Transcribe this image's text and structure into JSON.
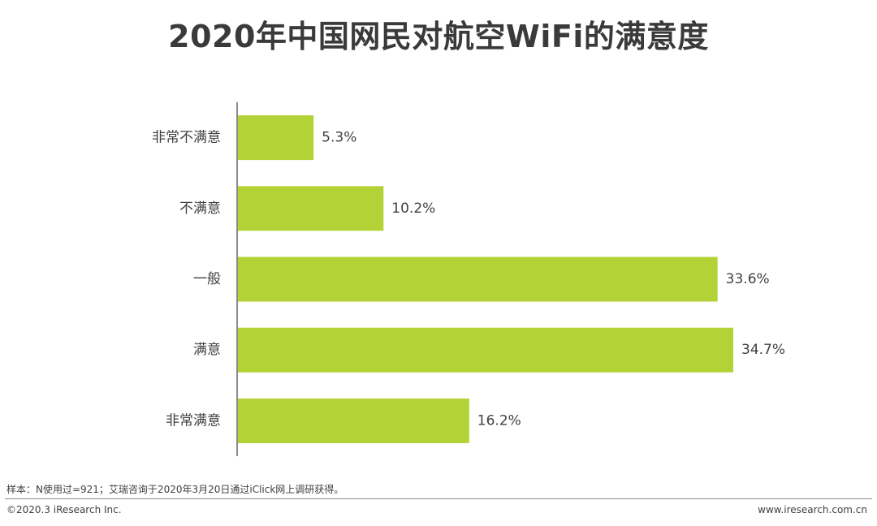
{
  "chart_data": {
    "type": "bar",
    "orientation": "horizontal",
    "title": "2020年中国网民对航空WiFi的满意度",
    "categories": [
      "非常不满意",
      "不满意",
      "一般",
      "满意",
      "非常满意"
    ],
    "values": [
      5.3,
      10.2,
      33.6,
      34.7,
      16.2
    ],
    "value_labels": [
      "5.3%",
      "10.2%",
      "33.6%",
      "34.7%",
      "16.2%"
    ],
    "unit": "%",
    "xlim": [
      0,
      45
    ],
    "grid": false,
    "bar_color": "#b2d235"
  },
  "footer": {
    "note": "样本：N使用过=921；艾瑞咨询于2020年3月20日通过iClick网上调研获得。",
    "copyright": "©2020.3 iResearch Inc.",
    "website": "www.iresearch.com.cn"
  }
}
